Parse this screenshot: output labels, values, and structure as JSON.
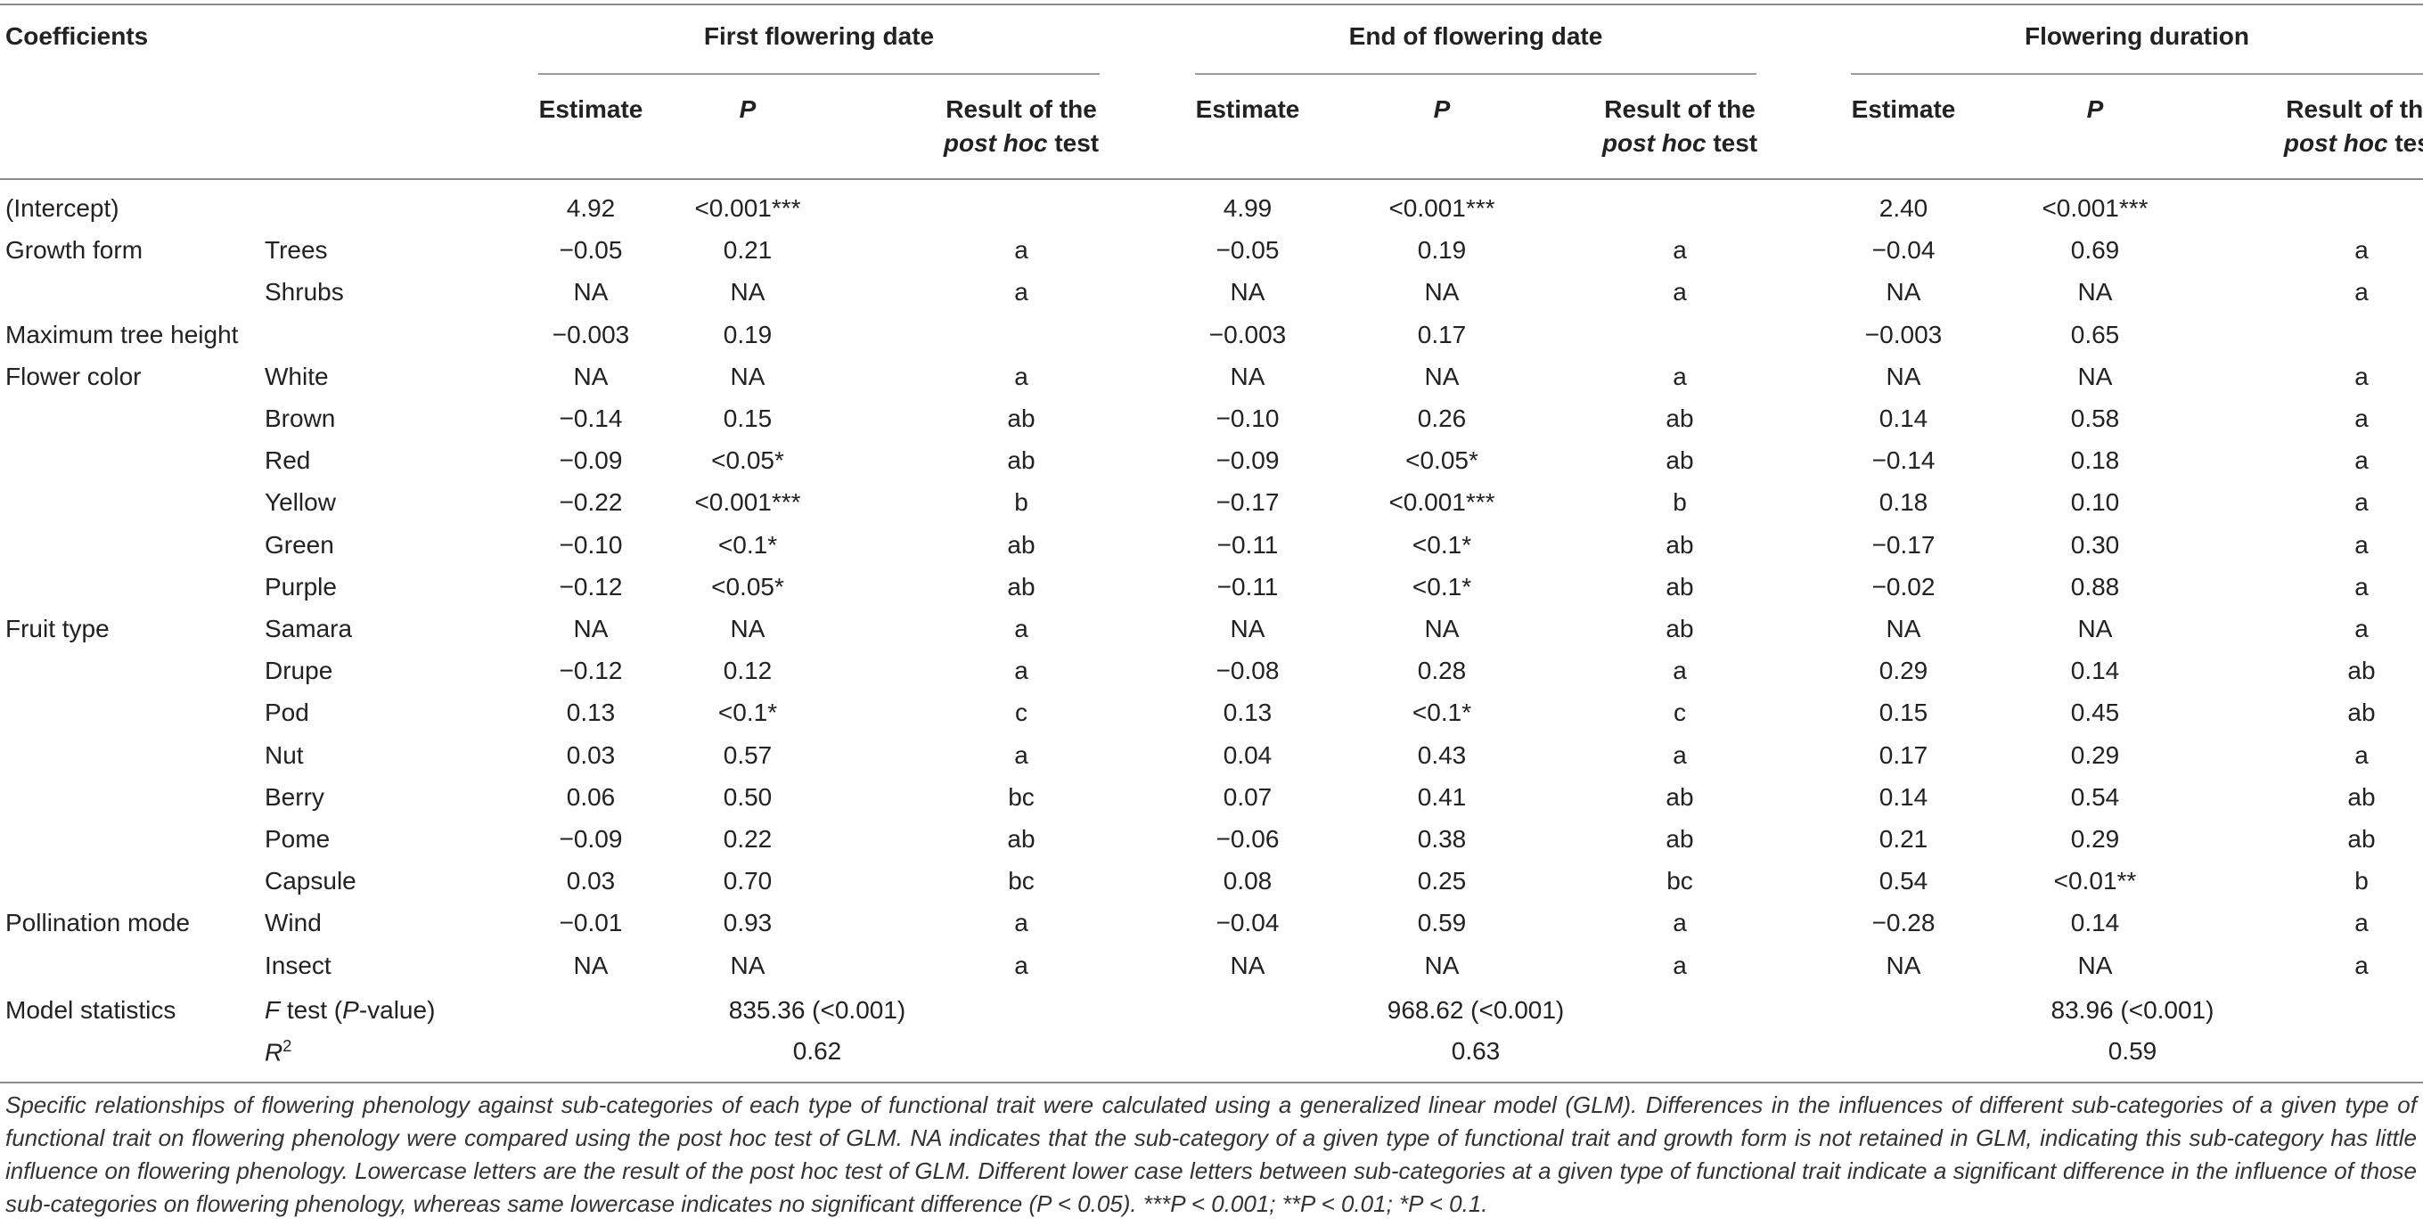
{
  "header": {
    "coefficients": "Coefficients",
    "groups": [
      "First flowering date",
      "End of flowering date",
      "Flowering duration"
    ],
    "estimate": "Estimate",
    "p": "P",
    "result_line1": "Result of the",
    "result_line2_italic": "post hoc",
    "result_line2_rest": " test"
  },
  "rows": [
    {
      "c1": "(Intercept)",
      "c2": "",
      "v": [
        "4.92",
        "<0.001***",
        "",
        "4.99",
        "<0.001***",
        "",
        "2.40",
        "<0.001***",
        ""
      ]
    },
    {
      "c1": "Growth form",
      "c2": "Trees",
      "v": [
        "−0.05",
        "0.21",
        "a",
        "−0.05",
        "0.19",
        "a",
        "−0.04",
        "0.69",
        "a"
      ]
    },
    {
      "c1": "",
      "c2": "Shrubs",
      "v": [
        "NA",
        "NA",
        "a",
        "NA",
        "NA",
        "a",
        "NA",
        "NA",
        "a"
      ]
    },
    {
      "c1": "Maximum tree height",
      "c2": "",
      "v": [
        "−0.003",
        "0.19",
        "",
        "−0.003",
        "0.17",
        "",
        "−0.003",
        "0.65",
        ""
      ]
    },
    {
      "c1": "Flower color",
      "c2": "White",
      "v": [
        "NA",
        "NA",
        "a",
        "NA",
        "NA",
        "a",
        "NA",
        "NA",
        "a"
      ]
    },
    {
      "c1": "",
      "c2": "Brown",
      "v": [
        "−0.14",
        "0.15",
        "ab",
        "−0.10",
        "0.26",
        "ab",
        "0.14",
        "0.58",
        "a"
      ]
    },
    {
      "c1": "",
      "c2": "Red",
      "v": [
        "−0.09",
        "<0.05*",
        "ab",
        "−0.09",
        "<0.05*",
        "ab",
        "−0.14",
        "0.18",
        "a"
      ]
    },
    {
      "c1": "",
      "c2": "Yellow",
      "v": [
        "−0.22",
        "<0.001***",
        "b",
        "−0.17",
        "<0.001***",
        "b",
        "0.18",
        "0.10",
        "a"
      ]
    },
    {
      "c1": "",
      "c2": "Green",
      "v": [
        "−0.10",
        "<0.1*",
        "ab",
        "−0.11",
        "<0.1*",
        "ab",
        "−0.17",
        "0.30",
        "a"
      ]
    },
    {
      "c1": "",
      "c2": "Purple",
      "v": [
        "−0.12",
        "<0.05*",
        "ab",
        "−0.11",
        "<0.1*",
        "ab",
        "−0.02",
        "0.88",
        "a"
      ]
    },
    {
      "c1": "Fruit type",
      "c2": "Samara",
      "v": [
        "NA",
        "NA",
        "a",
        "NA",
        "NA",
        "ab",
        "NA",
        "NA",
        "a"
      ]
    },
    {
      "c1": "",
      "c2": "Drupe",
      "v": [
        "−0.12",
        "0.12",
        "a",
        "−0.08",
        "0.28",
        "a",
        "0.29",
        "0.14",
        "ab"
      ]
    },
    {
      "c1": "",
      "c2": "Pod",
      "v": [
        "0.13",
        "<0.1*",
        "c",
        "0.13",
        "<0.1*",
        "c",
        "0.15",
        "0.45",
        "ab"
      ]
    },
    {
      "c1": "",
      "c2": "Nut",
      "v": [
        "0.03",
        "0.57",
        "a",
        "0.04",
        "0.43",
        "a",
        "0.17",
        "0.29",
        "a"
      ]
    },
    {
      "c1": "",
      "c2": "Berry",
      "v": [
        "0.06",
        "0.50",
        "bc",
        "0.07",
        "0.41",
        "ab",
        "0.14",
        "0.54",
        "ab"
      ]
    },
    {
      "c1": "",
      "c2": "Pome",
      "v": [
        "−0.09",
        "0.22",
        "ab",
        "−0.06",
        "0.38",
        "ab",
        "0.21",
        "0.29",
        "ab"
      ]
    },
    {
      "c1": "",
      "c2": "Capsule",
      "v": [
        "0.03",
        "0.70",
        "bc",
        "0.08",
        "0.25",
        "bc",
        "0.54",
        "<0.01**",
        "b"
      ]
    },
    {
      "c1": "Pollination mode",
      "c2": "Wind",
      "v": [
        "−0.01",
        "0.93",
        "a",
        "−0.04",
        "0.59",
        "a",
        "−0.28",
        "0.14",
        "a"
      ]
    },
    {
      "c1": "",
      "c2": "Insect",
      "v": [
        "NA",
        "NA",
        "a",
        "NA",
        "NA",
        "a",
        "NA",
        "NA",
        "a"
      ]
    }
  ],
  "model_stats": {
    "label": "Model statistics",
    "f_label_pre": "F",
    "f_label_mid": " test (",
    "f_label_p": "P",
    "f_label_post": "-value)",
    "f_values": [
      "835.36 (<0.001)",
      "968.62 (<0.001)",
      "83.96 (<0.001)"
    ],
    "r2_label": "R",
    "r2_sup": "2",
    "r2_values": [
      "0.62",
      "0.63",
      "0.59"
    ]
  },
  "footnote": "Specific relationships of flowering phenology against sub-categories of each type of functional trait were calculated using a generalized linear model (GLM). Differences in the influences of different sub-categories of a given type of functional trait on flowering phenology were compared using the post hoc test of GLM. NA indicates that the sub-category of a given type of functional trait and growth form is not retained in GLM, indicating this sub-category has little influence on flowering phenology. Lowercase letters are the result of the post hoc test of GLM. Different lower case letters between sub-categories at a given type of functional trait indicate a significant difference in the influence of those sub-categories on flowering phenology, whereas same lowercase indicates no significant difference (P < 0.05). ***P < 0.001; **P < 0.01; *P < 0.1."
}
